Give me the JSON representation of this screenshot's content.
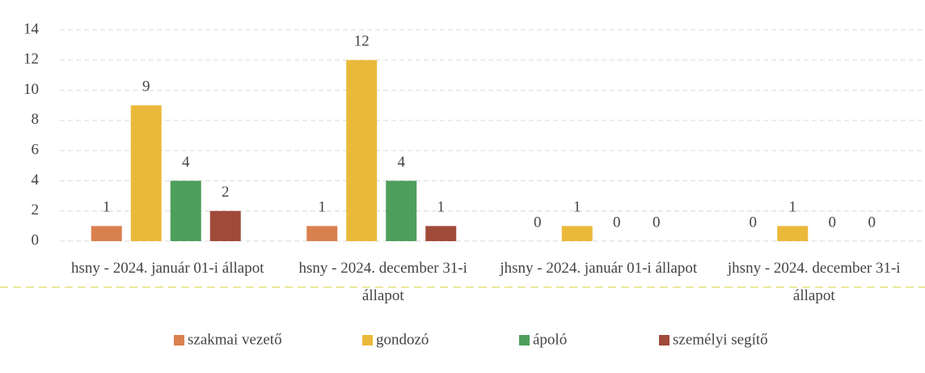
{
  "chart_data": {
    "type": "bar",
    "categories": [
      "hsny - 2024. január 01-i állapot",
      "hsny - 2024. december 31-i állapot",
      "jhsny - 2024. január 01-i állapot",
      "jhsny - 2024. december 31-i állapot"
    ],
    "series": [
      {
        "name": "szakmai vezető",
        "color": "#d9804f",
        "values": [
          1,
          1,
          0,
          0
        ]
      },
      {
        "name": "gondozó",
        "color": "#ebb93a",
        "values": [
          9,
          12,
          1,
          1
        ]
      },
      {
        "name": "ápoló",
        "color": "#4e9e5c",
        "values": [
          4,
          4,
          0,
          0
        ]
      },
      {
        "name": "személyi segítő",
        "color": "#a04a3a",
        "values": [
          2,
          1,
          0,
          0
        ]
      }
    ],
    "ylim": [
      0,
      14
    ],
    "yticks": [
      0,
      2,
      4,
      6,
      8,
      10,
      12,
      14
    ],
    "grid": true,
    "legend": "bottom"
  }
}
